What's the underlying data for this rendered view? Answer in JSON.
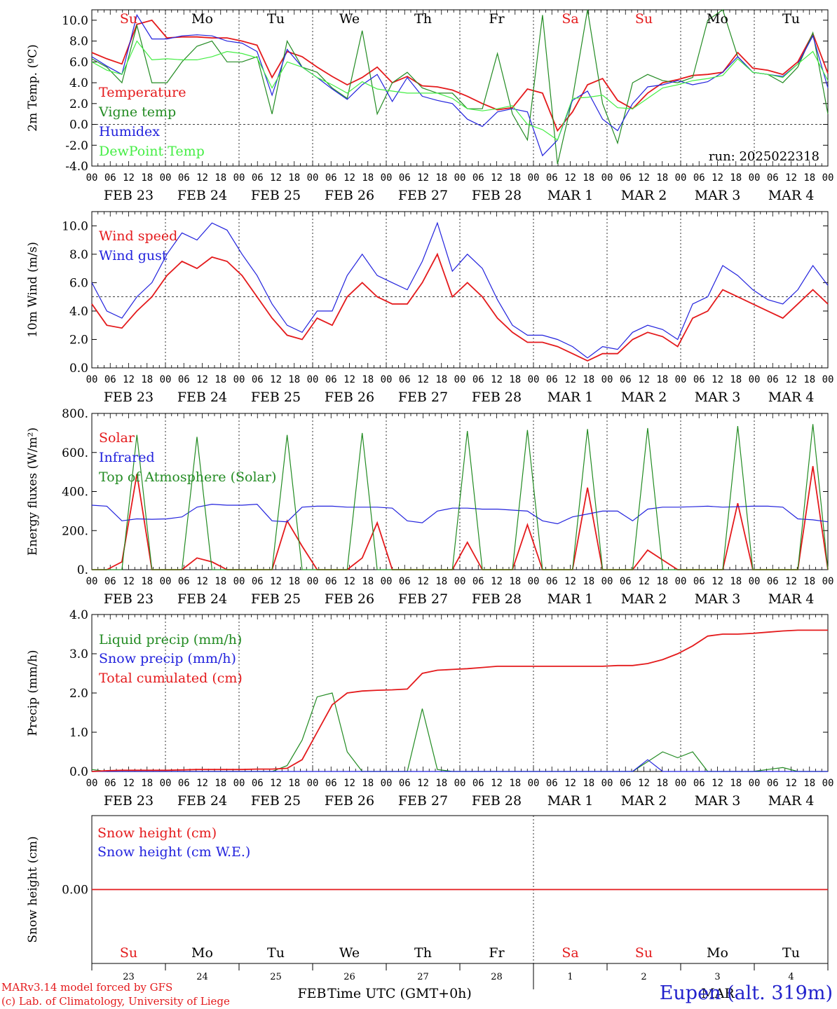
{
  "footer": {
    "model_line": "MARv3.14 model forced by GFS",
    "credit_line": "(c) Lab. of Climatology, University of Liege",
    "station": "Eupen (alt. 319m)",
    "xaxis_title": "Time UTC (GMT+0h)",
    "month_feb": "FEB",
    "month_mar": "MAR"
  },
  "colors": {
    "red": "#e41a1c",
    "green": "#228b22",
    "blue": "#2222dd",
    "lightgreen": "#44ee44"
  },
  "hour_ticks": [
    "00",
    "06",
    "12",
    "18"
  ],
  "day_labels": [
    "FEB 23",
    "FEB 24",
    "FEB 25",
    "FEB 26",
    "FEB 27",
    "FEB 28",
    "MAR  1",
    "MAR  2",
    "MAR  3",
    "MAR  4"
  ],
  "weekdays": [
    {
      "label": "Su",
      "weekend": true
    },
    {
      "label": "Mo",
      "weekend": false
    },
    {
      "label": "Tu",
      "weekend": false
    },
    {
      "label": "We",
      "weekend": false
    },
    {
      "label": "Th",
      "weekend": false
    },
    {
      "label": "Fr",
      "weekend": false
    },
    {
      "label": "Sa",
      "weekend": true
    },
    {
      "label": "Su",
      "weekend": true
    },
    {
      "label": "Mo",
      "weekend": false
    },
    {
      "label": "Tu",
      "weekend": false
    }
  ],
  "day_numbers": [
    "23",
    "24",
    "25",
    "26",
    "27",
    "28",
    "1",
    "2",
    "3",
    "4"
  ],
  "chart_data": [
    {
      "type": "line",
      "ylabel": "2m Temp. (ºC)",
      "ylim": [
        -4,
        11
      ],
      "yticks": [
        "-4.0",
        "-2.0",
        "0.0",
        "2.0",
        "4.0",
        "6.0",
        "8.0",
        "10.0"
      ],
      "ytick_values": [
        -4,
        -2,
        0,
        2,
        4,
        6,
        8,
        10
      ],
      "hline": 0,
      "annotation": "run: 2025022318",
      "x_hours_step": 6,
      "series": [
        {
          "name": "Temperature",
          "color": "red",
          "values": [
            6.9,
            6.3,
            5.8,
            9.6,
            10.0,
            8.3,
            8.4,
            8.4,
            8.3,
            8.3,
            8.0,
            7.6,
            4.5,
            7.0,
            6.5,
            5.5,
            4.6,
            3.8,
            4.5,
            5.5,
            4.0,
            4.6,
            3.7,
            3.6,
            3.3,
            2.7,
            2.0,
            1.4,
            1.6,
            3.4,
            3.0,
            -0.6,
            1.2,
            3.8,
            4.4,
            2.3,
            1.5,
            3.0,
            4.0,
            4.3,
            4.7,
            4.8,
            5.0,
            6.9,
            5.4,
            5.2,
            4.8,
            6.0,
            8.7,
            4.9
          ]
        },
        {
          "name": "Vigne temp",
          "color": "green",
          "values": [
            6.3,
            5.5,
            4.0,
            9.5,
            4.0,
            4.0,
            6.0,
            7.5,
            8.0,
            6.0,
            6.0,
            6.5,
            1.0,
            8.0,
            5.5,
            5.0,
            3.5,
            2.5,
            9.0,
            1.0,
            4.0,
            5.0,
            3.5,
            3.0,
            3.0,
            1.5,
            1.5,
            6.8,
            1.0,
            -1.5,
            10.5,
            -3.8,
            2.5,
            11.0,
            2.0,
            -1.8,
            4.0,
            4.8,
            4.2,
            4.0,
            4.5,
            10.0,
            11.0,
            6.5,
            5.0,
            4.8,
            4.0,
            5.5,
            8.8,
            1.0
          ]
        },
        {
          "name": "Humidex",
          "color": "blue",
          "values": [
            6.5,
            5.6,
            4.8,
            10.5,
            8.2,
            8.2,
            8.5,
            8.6,
            8.5,
            8.0,
            7.8,
            7.0,
            2.8,
            7.2,
            5.5,
            4.5,
            3.4,
            2.4,
            3.8,
            4.8,
            2.2,
            4.5,
            2.7,
            2.3,
            2.0,
            0.5,
            -0.2,
            1.2,
            1.5,
            1.2,
            -3.0,
            -1.5,
            2.3,
            3.2,
            0.5,
            -0.6,
            2.0,
            3.6,
            3.8,
            4.2,
            3.8,
            4.1,
            5.0,
            6.5,
            5.0,
            4.8,
            4.6,
            5.8,
            8.5,
            3.5
          ]
        },
        {
          "name": "DewPoint Temp",
          "color": "lightgreen",
          "values": [
            6.0,
            5.2,
            4.8,
            8.0,
            6.2,
            6.3,
            6.2,
            6.2,
            6.5,
            7.0,
            6.8,
            6.4,
            3.5,
            6.0,
            5.5,
            4.5,
            3.8,
            3.0,
            4.1,
            3.4,
            3.2,
            3.0,
            3.0,
            3.0,
            2.5,
            1.5,
            1.3,
            1.5,
            1.8,
            0.0,
            -0.5,
            -1.5,
            2.5,
            2.6,
            2.8,
            1.6,
            1.5,
            2.5,
            3.5,
            3.8,
            4.2,
            4.4,
            4.7,
            6.3,
            5.0,
            4.8,
            4.5,
            5.8,
            7.0,
            4.2
          ]
        }
      ]
    },
    {
      "type": "line",
      "ylabel": "10m Wind (m/s)",
      "ylim": [
        0,
        11
      ],
      "yticks": [
        "0.0",
        "2.0",
        "4.0",
        "6.0",
        "8.0",
        "10.0"
      ],
      "ytick_values": [
        0,
        2,
        4,
        6,
        8,
        10
      ],
      "hline": 5,
      "annotation": "",
      "x_hours_step": 6,
      "series": [
        {
          "name": "Wind speed",
          "color": "red",
          "values": [
            4.5,
            3.0,
            2.8,
            4.0,
            5.0,
            6.5,
            7.5,
            7.0,
            7.8,
            7.5,
            6.5,
            5.0,
            3.5,
            2.3,
            2.0,
            3.5,
            3.0,
            5.0,
            6.0,
            5.0,
            4.5,
            4.5,
            6.0,
            8.0,
            5.0,
            6.0,
            5.0,
            3.5,
            2.5,
            1.8,
            1.8,
            1.5,
            1.0,
            0.5,
            1.0,
            1.0,
            2.0,
            2.5,
            2.2,
            1.5,
            3.5,
            4.0,
            5.5,
            5.0,
            4.5,
            4.0,
            3.5,
            4.5,
            5.5,
            4.5
          ]
        },
        {
          "name": "Wind gust",
          "color": "blue",
          "values": [
            6.0,
            4.0,
            3.5,
            5.0,
            6.0,
            8.0,
            9.5,
            9.0,
            10.2,
            9.7,
            8.0,
            6.5,
            4.5,
            3.0,
            2.5,
            4.0,
            4.0,
            6.5,
            8.0,
            6.5,
            6.0,
            5.5,
            7.5,
            10.2,
            6.8,
            8.0,
            7.0,
            4.8,
            3.0,
            2.3,
            2.3,
            2.0,
            1.5,
            0.7,
            1.5,
            1.3,
            2.5,
            3.0,
            2.7,
            2.0,
            4.5,
            5.0,
            7.2,
            6.5,
            5.5,
            4.8,
            4.5,
            5.5,
            7.2,
            5.8
          ]
        }
      ]
    },
    {
      "type": "line",
      "ylabel": "Energy fluxes (W/m²)",
      "ylim": [
        0,
        800
      ],
      "yticks": [
        "0.",
        "200.",
        "400.",
        "600.",
        "800."
      ],
      "ytick_values": [
        0,
        200,
        400,
        600,
        800
      ],
      "hline": null,
      "annotation": "",
      "x_hours_step": 6,
      "series": [
        {
          "name": "Solar",
          "color": "red",
          "values": [
            0,
            0,
            40,
            490,
            0,
            0,
            0,
            60,
            40,
            0,
            0,
            0,
            0,
            250,
            120,
            0,
            0,
            0,
            60,
            240,
            0,
            0,
            0,
            0,
            0,
            140,
            0,
            0,
            0,
            230,
            0,
            0,
            0,
            420,
            0,
            0,
            0,
            100,
            50,
            0,
            0,
            0,
            0,
            340,
            0,
            0,
            0,
            0,
            530,
            0
          ]
        },
        {
          "name": "Infrared",
          "color": "blue",
          "values": [
            330,
            325,
            250,
            260,
            258,
            260,
            270,
            320,
            335,
            330,
            330,
            335,
            250,
            245,
            320,
            325,
            325,
            320,
            320,
            320,
            315,
            250,
            240,
            300,
            315,
            315,
            310,
            310,
            305,
            300,
            250,
            235,
            270,
            285,
            300,
            300,
            250,
            310,
            320,
            320,
            322,
            325,
            320,
            322,
            325,
            325,
            320,
            260,
            255,
            245
          ]
        },
        {
          "name": "Top of Atmosphere (Solar)",
          "color": "green",
          "values": [
            0,
            0,
            0,
            690,
            0,
            0,
            0,
            680,
            0,
            0,
            0,
            0,
            0,
            690,
            0,
            0,
            0,
            0,
            700,
            0,
            0,
            0,
            0,
            0,
            0,
            710,
            0,
            0,
            0,
            715,
            0,
            0,
            0,
            720,
            0,
            0,
            0,
            725,
            0,
            0,
            0,
            0,
            0,
            735,
            0,
            0,
            0,
            0,
            745,
            0
          ]
        }
      ]
    },
    {
      "type": "line",
      "ylabel": "Precip (mm/h)",
      "ylim": [
        0,
        4
      ],
      "yticks": [
        "0.0",
        "1.0",
        "2.0",
        "3.0",
        "4.0"
      ],
      "ytick_values": [
        0,
        1,
        2,
        3,
        4
      ],
      "hline": null,
      "annotation": "",
      "x_hours_step": 6,
      "series": [
        {
          "name": "Liquid precip (mm/h)",
          "color": "green",
          "values": [
            0.05,
            0,
            0,
            0,
            0,
            0,
            0,
            0,
            0,
            0,
            0,
            0,
            0,
            0.15,
            0.8,
            1.9,
            2.0,
            0.5,
            0,
            0,
            0,
            0,
            1.6,
            0.05,
            0,
            0,
            0,
            0,
            0,
            0,
            0,
            0,
            0,
            0,
            0,
            0,
            0,
            0.25,
            0.5,
            0.35,
            0.5,
            0,
            0,
            0,
            0,
            0.05,
            0.1,
            0,
            0,
            0
          ]
        },
        {
          "name": "Snow precip (mm/h)",
          "color": "blue",
          "values": [
            0,
            0,
            0,
            0,
            0,
            0,
            0,
            0,
            0,
            0,
            0,
            0,
            0,
            0,
            0,
            0,
            0,
            0,
            0,
            0,
            0,
            0,
            0,
            0,
            0,
            0,
            0,
            0,
            0,
            0,
            0,
            0,
            0,
            0,
            0,
            0,
            0,
            0.3,
            0,
            0,
            0,
            0,
            0,
            0,
            0,
            0,
            0,
            0,
            0,
            0
          ]
        },
        {
          "name": "Total cumulated (cm)",
          "color": "red",
          "values": [
            0,
            0.02,
            0.03,
            0.03,
            0.03,
            0.03,
            0.04,
            0.05,
            0.05,
            0.05,
            0.05,
            0.06,
            0.06,
            0.08,
            0.3,
            1.0,
            1.7,
            2.0,
            2.05,
            2.07,
            2.08,
            2.1,
            2.5,
            2.58,
            2.6,
            2.62,
            2.65,
            2.68,
            2.68,
            2.68,
            2.68,
            2.68,
            2.68,
            2.68,
            2.68,
            2.7,
            2.7,
            2.75,
            2.85,
            3.0,
            3.2,
            3.45,
            3.5,
            3.5,
            3.52,
            3.55,
            3.58,
            3.6,
            3.6,
            3.6
          ]
        }
      ]
    },
    {
      "type": "line",
      "ylabel": "Snow height (cm)",
      "ylim": [
        -1,
        1
      ],
      "yticks": [
        "0.00"
      ],
      "ytick_values": [
        0
      ],
      "hline": null,
      "annotation": "",
      "x_hours_step": 6,
      "series": [
        {
          "name": "Snow height (cm)",
          "color": "red",
          "values": [
            0,
            0,
            0,
            0,
            0,
            0,
            0,
            0,
            0,
            0,
            0,
            0,
            0,
            0,
            0,
            0,
            0,
            0,
            0,
            0,
            0,
            0,
            0,
            0,
            0,
            0,
            0,
            0,
            0,
            0,
            0,
            0,
            0,
            0,
            0,
            0,
            0,
            0,
            0,
            0,
            0,
            0,
            0,
            0,
            0,
            0,
            0,
            0,
            0,
            0
          ]
        },
        {
          "name": "Snow height (cm W.E.)",
          "color": "blue",
          "values": []
        }
      ]
    }
  ]
}
